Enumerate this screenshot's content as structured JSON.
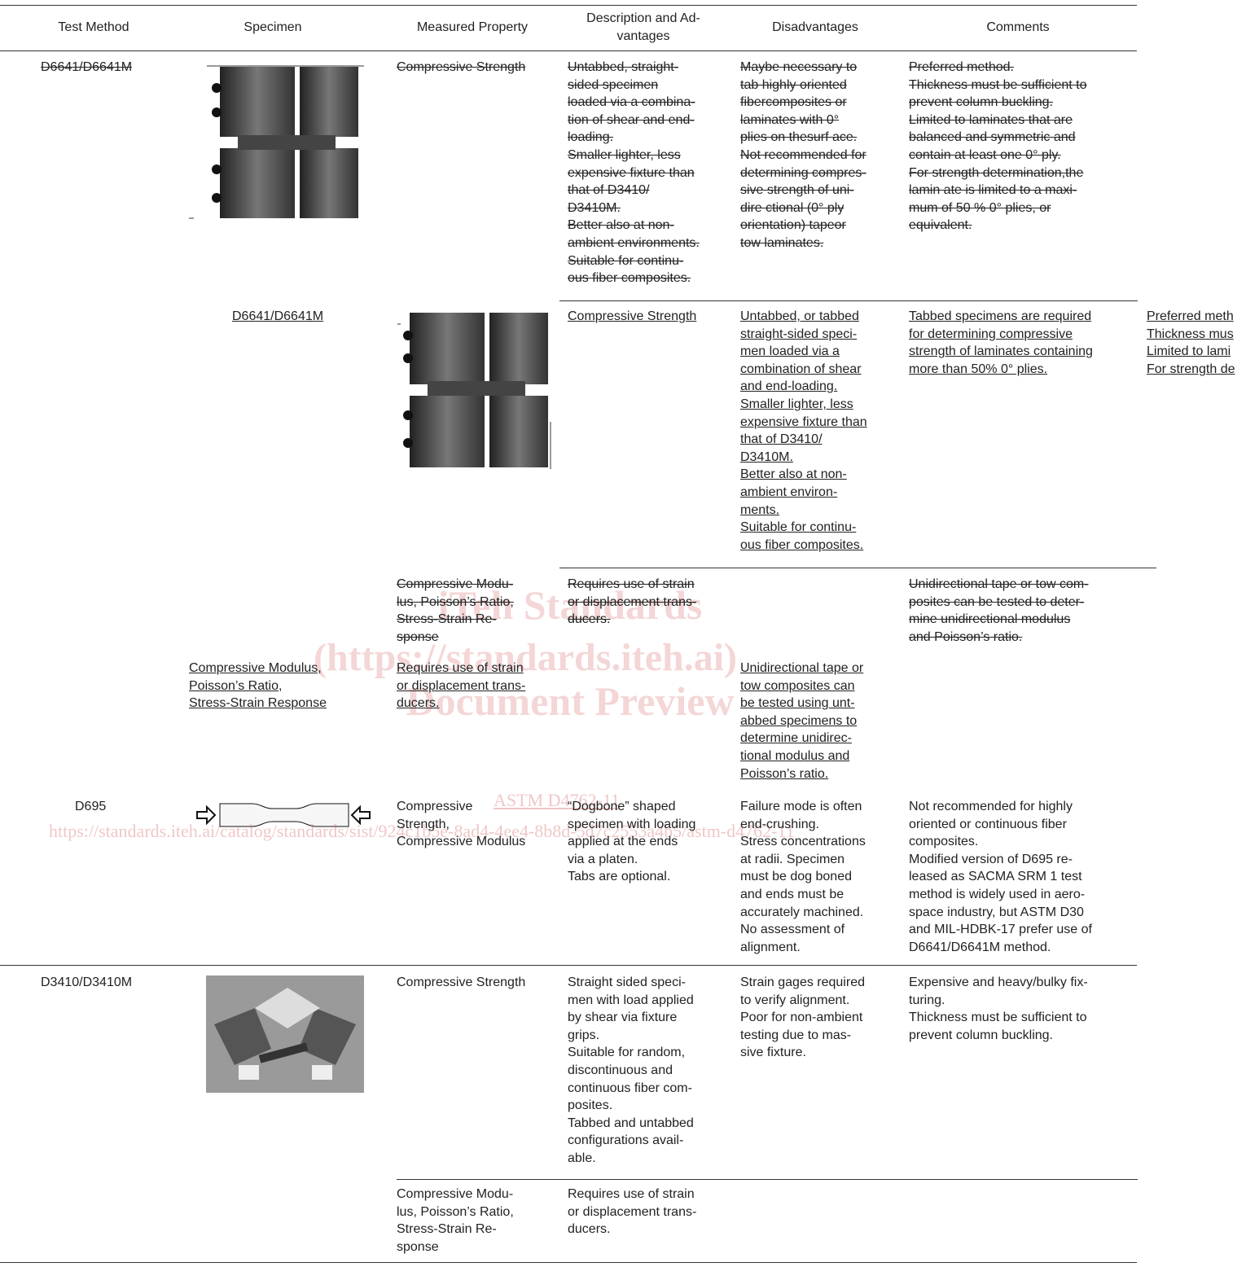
{
  "header": {
    "columns": [
      {
        "lines": [
          "Test Method"
        ]
      },
      {
        "lines": [
          "Specimen"
        ]
      },
      {
        "lines": [
          "Measured Property"
        ]
      },
      {
        "lines": [
          "Description and Ad-",
          "vantages"
        ]
      },
      {
        "lines": [
          "Disadvantages"
        ]
      },
      {
        "lines": [
          "Comments"
        ]
      }
    ]
  },
  "cells": [
    {
      "style": "deleted",
      "lines": [
        "D6641/D6641M"
      ]
    },
    {
      "style": "deleted",
      "lines": [
        "Compressive Strength"
      ]
    },
    {
      "style": "deleted",
      "lines": [
        "Untabbed, straight-",
        "sided specimen",
        "loaded via a combina-",
        "tion of shear and end-",
        "loading.",
        "Smaller lighter, less",
        "expensive fixture than",
        "that of D3410/",
        "D3410M.",
        "Better also at non-",
        "ambient environments.",
        "Suitable for continu-",
        "ous fiber composites."
      ]
    },
    {
      "style": "deleted",
      "lines": [
        "Maybe necessary to",
        "tab highly oriented",
        "fibercomposites or",
        "laminates with 0°",
        "plies on thesurf ace.",
        "Not recommended for",
        "determining compres-",
        "sive strength of uni-",
        "dire ctional (0° ply",
        "orientation) tapeor",
        "tow laminates."
      ]
    },
    {
      "style": "deleted",
      "lines": [
        "Preferred method.",
        "Thickness must be sufficient to",
        "prevent column buckling.",
        "Limited to laminates that are",
        "balanced and symmetric and",
        "contain at least one 0° ply.",
        "For strength determination,the",
        "lamin ate is limited to a maxi-",
        "mum of 50 % 0° plies, or",
        "equivalent."
      ]
    },
    {
      "style": "inserted",
      "lines": [
        "D6641/D6641M"
      ]
    },
    {
      "style": "inserted",
      "lines": [
        "Compressive Strength"
      ]
    },
    {
      "style": "inserted",
      "lines": [
        "Untabbed, or tabbed",
        "straight-sided speci-",
        "men loaded via a",
        "combination of shear",
        "and end-loading.",
        "Smaller lighter, less",
        "expensive fixture than",
        "that of D3410/",
        "D3410M.",
        "Better also at non-",
        "ambient environ-",
        "ments.",
        "Suitable for continu-",
        "ous fiber composites."
      ]
    },
    {
      "style": "inserted",
      "lines": [
        "Tabbed specimens are required",
        "for determining compressive",
        "strength of laminates containing",
        "more than 50% 0° plies."
      ]
    },
    {
      "style": "inserted",
      "lines": [
        "Preferred meth",
        "Thickness mus",
        "Limited to lami",
        "For strength de"
      ]
    },
    {
      "style": "deleted",
      "lines": [
        "Compressive Modu-",
        "lus, Poisson’s Ratio,",
        "Stress-Strain Re-",
        "sponse"
      ]
    },
    {
      "style": "deleted",
      "lines": [
        "Requires use of strain",
        "or displacement trans-",
        "ducers."
      ]
    },
    {
      "style": "deleted",
      "lines": [
        "Unidirectional tape or tow com-",
        "posites can be tested to deter-",
        "mine unidirectional modulus",
        "and Poisson’s ratio."
      ]
    },
    {
      "style": "inserted",
      "lines": [
        "Compressive Modulus,",
        "Poisson’s Ratio,",
        "Stress-Strain Response"
      ]
    },
    {
      "style": "inserted",
      "lines": [
        "Requires use of strain",
        "or displacement trans-",
        "ducers."
      ]
    },
    {
      "style": "inserted",
      "lines": [
        "Unidirectional tape or",
        "tow composites can",
        "be tested using unt-",
        "abbed specimens to",
        "determine unidirec-",
        "tional modulus and",
        "Poisson’s ratio."
      ]
    },
    {
      "style": "plain",
      "lines": [
        "D695"
      ]
    },
    {
      "style": "plain",
      "lines": [
        "Compressive",
        "Strength,",
        "Compressive Modulus"
      ]
    },
    {
      "style": "plain",
      "lines": [
        "“Dogbone” shaped",
        "specimen with loading",
        "applied at the ends",
        "via a platen.",
        "Tabs are optional."
      ]
    },
    {
      "style": "plain",
      "lines": [
        "Failure mode is often",
        "end-crushing.",
        "Stress concentrations",
        "at radii. Specimen",
        "must be dog boned",
        "and ends must be",
        "accurately machined.",
        "No assessment of",
        "alignment."
      ]
    },
    {
      "style": "plain",
      "lines": [
        "Not recommended for highly",
        "oriented or continuous fiber",
        "composites.",
        "Modified version of D695 re-",
        "leased as SACMA SRM 1 test",
        "method is widely used in aero-",
        "space industry, but ASTM D30",
        "and MIL-HDBK-17 prefer use of",
        "D6641/D6641M method."
      ]
    },
    {
      "style": "plain",
      "lines": [
        "D3410/D3410M"
      ]
    },
    {
      "style": "plain",
      "lines": [
        "Compressive Strength"
      ]
    },
    {
      "style": "plain",
      "lines": [
        "Straight sided speci-",
        "men with load applied",
        "by shear via fixture",
        "grips.",
        "Suitable for random,",
        "discontinuous and",
        "continuous fiber com-",
        "posites.",
        "Tabbed and untabbed",
        "configurations avail-",
        "able."
      ]
    },
    {
      "style": "plain",
      "lines": [
        "Strain gages required",
        "to verify alignment.",
        "Poor for non-ambient",
        "testing due to mas-",
        "sive fixture."
      ]
    },
    {
      "style": "plain",
      "lines": [
        "Expensive and heavy/bulky fix-",
        "turing.",
        "Thickness must be sufficient to",
        "prevent column buckling."
      ]
    },
    {
      "style": "plain",
      "lines": [
        "Compressive Modu-",
        "lus, Poisson’s Ratio,",
        "Stress-Strain Re-",
        "sponse"
      ]
    },
    {
      "style": "plain",
      "lines": [
        "Requires use of strain",
        "or displacement trans-",
        "ducers."
      ]
    }
  ],
  "watermark": {
    "lines": [
      "iTeh Standards",
      "(https://standards.iteh.ai)",
      "Document Preview"
    ],
    "designation": "ASTM D4762-11",
    "url": "https://standards.iteh.ai/catalog/standards/sist/924c1b5e-8ad4-4ee4-8b8d-5d7c2553a4b5/astm-d4762-11"
  }
}
